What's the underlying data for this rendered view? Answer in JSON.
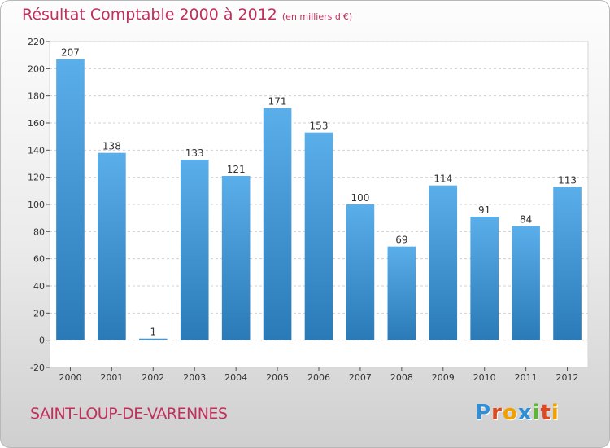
{
  "header": {
    "title": "Résultat Comptable 2000 à 2012",
    "subtitle": "(en milliers d'€)"
  },
  "footer": {
    "commune": "SAINT-LOUP-DE-VARENNES",
    "brand": "Proxiti"
  },
  "colors": {
    "title": "#c0305a",
    "bar_top": "#5aaeea",
    "bar_bottom": "#2a7ab8",
    "grid": "#d0d0d0"
  },
  "chart_data": {
    "type": "bar",
    "categories": [
      "2000",
      "2001",
      "2002",
      "2003",
      "2004",
      "2005",
      "2006",
      "2007",
      "2008",
      "2009",
      "2010",
      "2011",
      "2012"
    ],
    "values": [
      207,
      138,
      1,
      133,
      121,
      171,
      153,
      100,
      69,
      114,
      91,
      84,
      113
    ],
    "data_labels": [
      "207",
      "138",
      "1",
      "133",
      "121",
      "171",
      "153",
      "100",
      "69",
      "114",
      "91",
      "84",
      "113"
    ],
    "y_ticks": [
      -20,
      0,
      20,
      40,
      60,
      80,
      100,
      120,
      140,
      160,
      180,
      200,
      220
    ],
    "ylim": [
      -20,
      220
    ],
    "title": "Résultat Comptable 2000 à 2012",
    "xlabel": "",
    "ylabel": "",
    "grid": true,
    "legend": "none"
  }
}
